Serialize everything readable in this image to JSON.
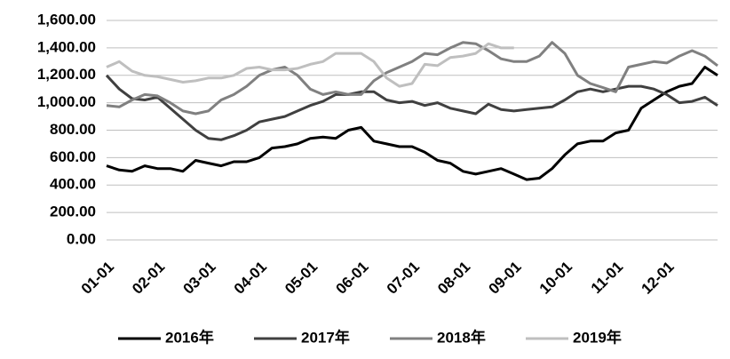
{
  "chart_data": {
    "type": "line",
    "categories": [
      "01-01",
      null,
      null,
      null,
      "02-01",
      null,
      null,
      null,
      "03-01",
      null,
      null,
      null,
      "04-01",
      null,
      null,
      null,
      "05-01",
      null,
      null,
      null,
      "06-01",
      null,
      null,
      null,
      "07-01",
      null,
      null,
      null,
      "08-01",
      null,
      null,
      null,
      "09-01",
      null,
      null,
      null,
      "10-01",
      null,
      null,
      null,
      "11-01",
      null,
      null,
      null,
      "12-01",
      null,
      null,
      null,
      null
    ],
    "series": [
      {
        "name": "2016年",
        "color": "#000000",
        "values": [
          540,
          510,
          500,
          540,
          520,
          520,
          500,
          580,
          560,
          540,
          570,
          570,
          600,
          670,
          680,
          700,
          740,
          750,
          740,
          800,
          820,
          720,
          700,
          680,
          680,
          640,
          580,
          560,
          500,
          480,
          500,
          520,
          480,
          440,
          450,
          520,
          620,
          700,
          720,
          720,
          780,
          800,
          960,
          1020,
          1080,
          1120,
          1140,
          1260,
          1200
        ]
      },
      {
        "name": "2017年",
        "color": "#404040",
        "values": [
          1200,
          1100,
          1030,
          1020,
          1040,
          960,
          880,
          800,
          740,
          730,
          760,
          800,
          860,
          880,
          900,
          940,
          980,
          1010,
          1060,
          1060,
          1080,
          1080,
          1020,
          1000,
          1010,
          980,
          1000,
          960,
          940,
          920,
          990,
          950,
          940,
          950,
          960,
          970,
          1020,
          1080,
          1100,
          1080,
          1100,
          1120,
          1120,
          1100,
          1060,
          1000,
          1010,
          1040,
          980
        ]
      },
      {
        "name": "2018年",
        "color": "#808080",
        "values": [
          980,
          970,
          1020,
          1060,
          1050,
          1000,
          940,
          920,
          940,
          1020,
          1060,
          1120,
          1200,
          1240,
          1260,
          1200,
          1100,
          1060,
          1080,
          1060,
          1060,
          1160,
          1220,
          1260,
          1300,
          1360,
          1350,
          1400,
          1440,
          1430,
          1380,
          1320,
          1300,
          1300,
          1340,
          1440,
          1360,
          1200,
          1140,
          1110,
          1080,
          1260,
          1280,
          1300,
          1290,
          1340,
          1380,
          1340,
          1270
        ]
      },
      {
        "name": "2019年",
        "color": "#bfbfbf",
        "values": [
          1260,
          1300,
          1230,
          1200,
          1190,
          1170,
          1150,
          1160,
          1180,
          1180,
          1200,
          1250,
          1260,
          1240,
          1240,
          1250,
          1280,
          1300,
          1360,
          1360,
          1360,
          1300,
          1180,
          1120,
          1140,
          1280,
          1270,
          1330,
          1340,
          1360,
          1430,
          1400,
          1400,
          null,
          null,
          null,
          null,
          null,
          null,
          null,
          null,
          null,
          null,
          null,
          null,
          null,
          null,
          null,
          null
        ]
      }
    ],
    "ylim": [
      0,
      1600
    ],
    "yticks": [
      {
        "value": 0,
        "label": "0.00"
      },
      {
        "value": 200,
        "label": "200.00"
      },
      {
        "value": 400,
        "label": "400.00"
      },
      {
        "value": 600,
        "label": "600.00"
      },
      {
        "value": 800,
        "label": "800.00"
      },
      {
        "value": 1000,
        "label": "1,000.00"
      },
      {
        "value": 1200,
        "label": "1,200.00"
      },
      {
        "value": 1400,
        "label": "1,400.00"
      },
      {
        "value": 1600,
        "label": "1,600.00"
      }
    ],
    "grid": true,
    "legend": "bottom"
  }
}
